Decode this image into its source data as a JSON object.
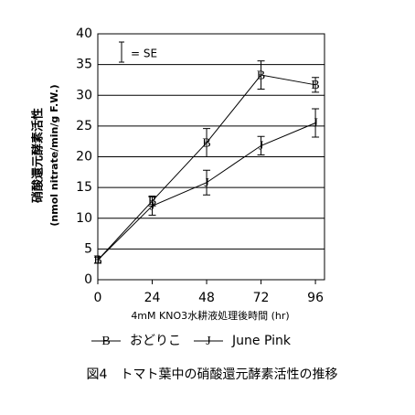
{
  "chart_data": {
    "type": "line",
    "x": [
      0,
      24,
      48,
      72,
      96
    ],
    "series": [
      {
        "name": "おどりこ",
        "marker": "B",
        "color": "#000000",
        "values": [
          3.2,
          12.8,
          22.3,
          33.3,
          31.7
        ],
        "errors": [
          0.5,
          0.8,
          2.3,
          2.3,
          1.2
        ]
      },
      {
        "name": "June Pink",
        "marker": "J",
        "color": "#000000",
        "values": [
          3.2,
          12.0,
          15.8,
          21.8,
          25.5
        ],
        "errors": [
          0.5,
          1.5,
          2.0,
          1.5,
          2.3
        ]
      }
    ],
    "xlim": [
      0,
      100
    ],
    "xticks": [
      0,
      24,
      48,
      72,
      96
    ],
    "ylim": [
      0,
      40
    ],
    "yticks": [
      0,
      5,
      10,
      15,
      20,
      25,
      30,
      35,
      40
    ],
    "grid": true,
    "xlabel": "4mM KNO3水耕液処理後時間 (hr)",
    "ylabel": "硝酸還元酵素活性",
    "ylabel2": "(nmol nitrate/min/g F.W.)",
    "se_legend": "= SE",
    "caption": "図4　トマト葉中の硝酸還元酵素活性の推移"
  }
}
